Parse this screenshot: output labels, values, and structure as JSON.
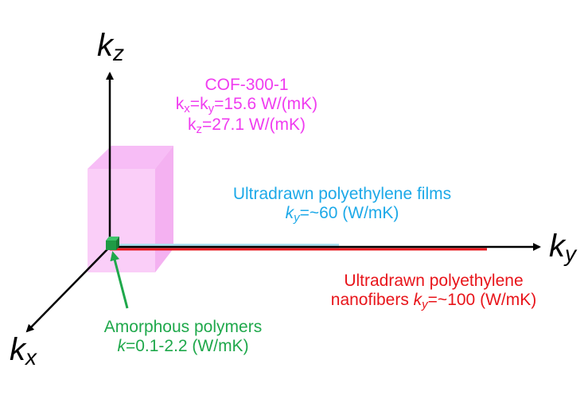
{
  "axes": {
    "z": {
      "base": "k",
      "sub": "z"
    },
    "y": {
      "base": "k",
      "sub": "y"
    },
    "x": {
      "base": "k",
      "sub": "x"
    }
  },
  "cof": {
    "title": "COF-300-1",
    "line2": {
      "a": "k",
      "a_sub": "x",
      "eq": "=",
      "b": "k",
      "b_sub": "y",
      "value": "=15.6 W/(mK)"
    },
    "line3": {
      "a": "k",
      "a_sub": "z",
      "value": "=27.1 W/(mK)"
    },
    "color": "#f03cf0"
  },
  "films": {
    "title": "Ultradrawn polyethylene films",
    "k": "k",
    "k_sub": "y",
    "value": "=~60 (W/mK)",
    "color": "#1da9e8"
  },
  "nanofibers": {
    "line1": "Ultradrawn polyethylene",
    "line2_prefix": "nanofibers ",
    "k": "k",
    "k_sub": "y",
    "value": "=~100 (W/mK)",
    "color": "#e8141a"
  },
  "amorphous": {
    "title": "Amorphous polymers",
    "k": "k",
    "value": "=0.1-2.2 (W/mK)",
    "color": "#1fa84b"
  }
}
